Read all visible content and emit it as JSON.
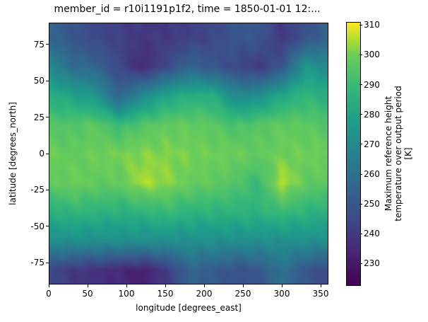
{
  "chart_data": {
    "type": "heatmap",
    "title": "member_id = r10i1191p1f2, time = 1850-01-01 12:...",
    "xlabel": "longitude [degrees_east]",
    "ylabel": "latitude [degrees_north]",
    "xlim": [
      0,
      360
    ],
    "ylim": [
      -90,
      90
    ],
    "xticks": [
      0,
      50,
      100,
      150,
      200,
      250,
      300,
      350
    ],
    "yticks": [
      -75,
      -50,
      -25,
      0,
      25,
      50,
      75
    ],
    "colormap": "viridis",
    "colorbar": {
      "label_lines": [
        "Maximum reference height",
        "temperature over output period",
        "[K]"
      ],
      "range": [
        223,
        311
      ],
      "ticks": [
        230,
        240,
        250,
        260,
        270,
        280,
        290,
        300,
        310
      ]
    },
    "grid_lat": [
      80,
      60,
      40,
      20,
      0,
      -20,
      -40,
      -60,
      -80
    ],
    "grid_lon": [
      0,
      30,
      60,
      90,
      120,
      150,
      180,
      210,
      240,
      270,
      300,
      330
    ],
    "values": [
      [
        255,
        250,
        245,
        242,
        240,
        240,
        242,
        245,
        250,
        250,
        240,
        248
      ],
      [
        270,
        258,
        255,
        245,
        235,
        245,
        255,
        250,
        245,
        240,
        250,
        275
      ],
      [
        285,
        280,
        275,
        255,
        270,
        280,
        285,
        285,
        270,
        272,
        282,
        288
      ],
      [
        295,
        295,
        297,
        290,
        295,
        298,
        298,
        297,
        293,
        296,
        298,
        297
      ],
      [
        300,
        298,
        300,
        301,
        302,
        302,
        301,
        300,
        300,
        298,
        300,
        300
      ],
      [
        297,
        300,
        298,
        298,
        305,
        303,
        299,
        298,
        295,
        290,
        306,
        298
      ],
      [
        285,
        288,
        287,
        286,
        287,
        290,
        287,
        287,
        287,
        287,
        290,
        287
      ],
      [
        272,
        272,
        272,
        272,
        272,
        272,
        272,
        272,
        272,
        272,
        272,
        272
      ],
      [
        245,
        240,
        238,
        235,
        232,
        240,
        255,
        252,
        248,
        250,
        260,
        250
      ]
    ]
  }
}
